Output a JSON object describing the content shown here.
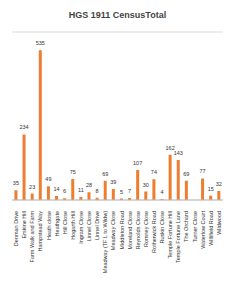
{
  "chart_data": {
    "type": "bar",
    "title": "HGS 1911 CensusTotal",
    "categories": [
      "Denman Drive",
      "Erskine Hill",
      "Farm Walk and Farm",
      "Hampstead Way",
      "Heath close",
      "Heathgate",
      "Hill Close",
      "Hogarth Hill",
      "Ingram Close",
      "Linnel Close",
      "Linnel Drive",
      "Meadway (TF L to Wildw)",
      "Meadway Close",
      "Middleton Road",
      "Moreland Close",
      "Reynolds Close",
      "Romney Close",
      "Rotherwick Road",
      "Ruskin Close",
      "Temple Fortune Hill",
      "Temple Fortune Lane",
      "The Orchard",
      "Turner Close",
      "Waterlow Court",
      "Willifield Road",
      "Wildwood"
    ],
    "values": [
      35,
      234,
      23,
      535,
      49,
      14,
      6,
      75,
      11,
      28,
      8,
      69,
      39,
      5,
      7,
      107,
      30,
      74,
      4,
      162,
      143,
      69,
      0,
      77,
      15,
      32
    ],
    "color": "#ed7d31",
    "ylim": [
      0,
      600
    ],
    "yticks": [
      0,
      100,
      200,
      300,
      400,
      500,
      600
    ],
    "grid": true,
    "data_labels": true,
    "tick_labels": "x"
  }
}
